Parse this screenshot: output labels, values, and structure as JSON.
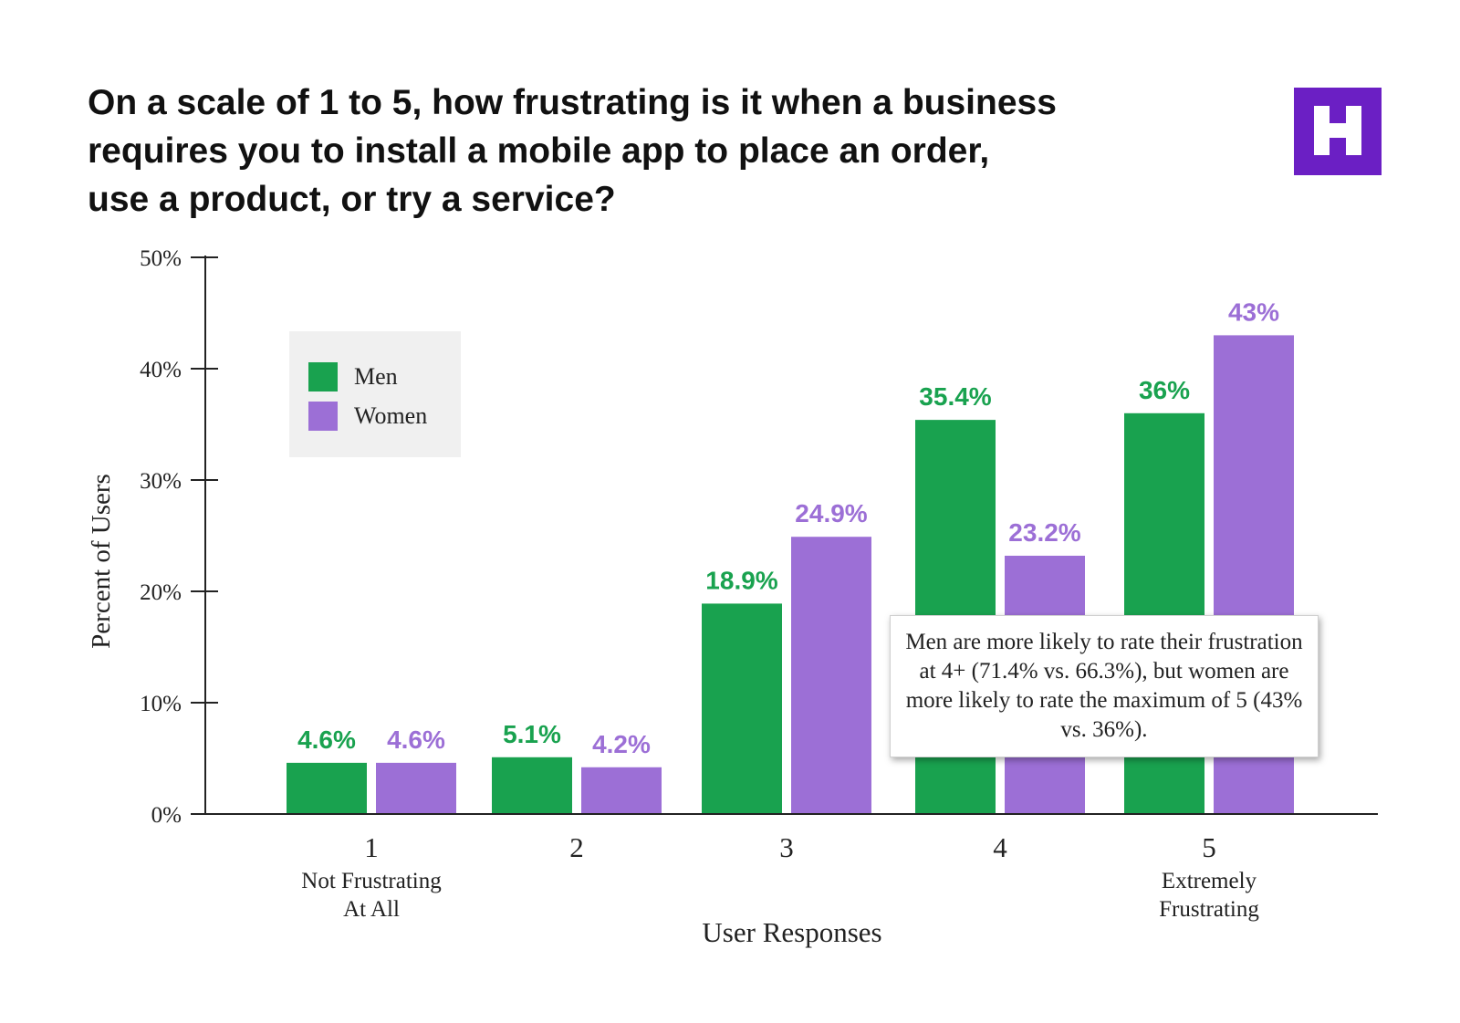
{
  "title_lines": [
    "On a scale of 1 to 5, how frustrating is it when a business",
    "requires you to install a mobile app to place an order,",
    "use a product, or try a service?"
  ],
  "logo": {
    "letter": "H",
    "color": "#6b1fc4"
  },
  "callout": {
    "text": "Men are more likely to rate their frustration at 4+ (71.4% vs. 66.3%), but women are more likely to rate the maximum of 5 (43% vs. 36%)."
  },
  "chart_data": {
    "type": "bar",
    "title": "On a scale of 1 to 5, how frustrating is it when a business requires you to install a mobile app to place an order, use a product, or try a service?",
    "xlabel": "User Responses",
    "ylabel": "Percent of Users",
    "ylim": [
      0,
      50
    ],
    "yticks": [
      0,
      10,
      20,
      30,
      40,
      50
    ],
    "ytick_labels": [
      "0%",
      "10%",
      "20%",
      "30%",
      "40%",
      "50%"
    ],
    "categories": [
      "1",
      "2",
      "3",
      "4",
      "5"
    ],
    "category_sublabels": [
      [
        "Not Frustrating",
        "At All"
      ],
      [],
      [],
      [],
      [
        "Extremely",
        "Frustrating"
      ]
    ],
    "series": [
      {
        "name": "Men",
        "color": "#19a24f",
        "values": [
          4.6,
          5.1,
          18.9,
          35.4,
          36
        ],
        "labels": [
          "4.6%",
          "5.1%",
          "18.9%",
          "35.4%",
          "36%"
        ]
      },
      {
        "name": "Women",
        "color": "#9c6fd6",
        "values": [
          4.6,
          4.2,
          24.9,
          23.2,
          43
        ],
        "labels": [
          "4.6%",
          "4.2%",
          "24.9%",
          "23.2%",
          "43%"
        ]
      }
    ],
    "legend": {
      "position": "top-left",
      "background": "#f0f0f0"
    },
    "grid": false
  }
}
